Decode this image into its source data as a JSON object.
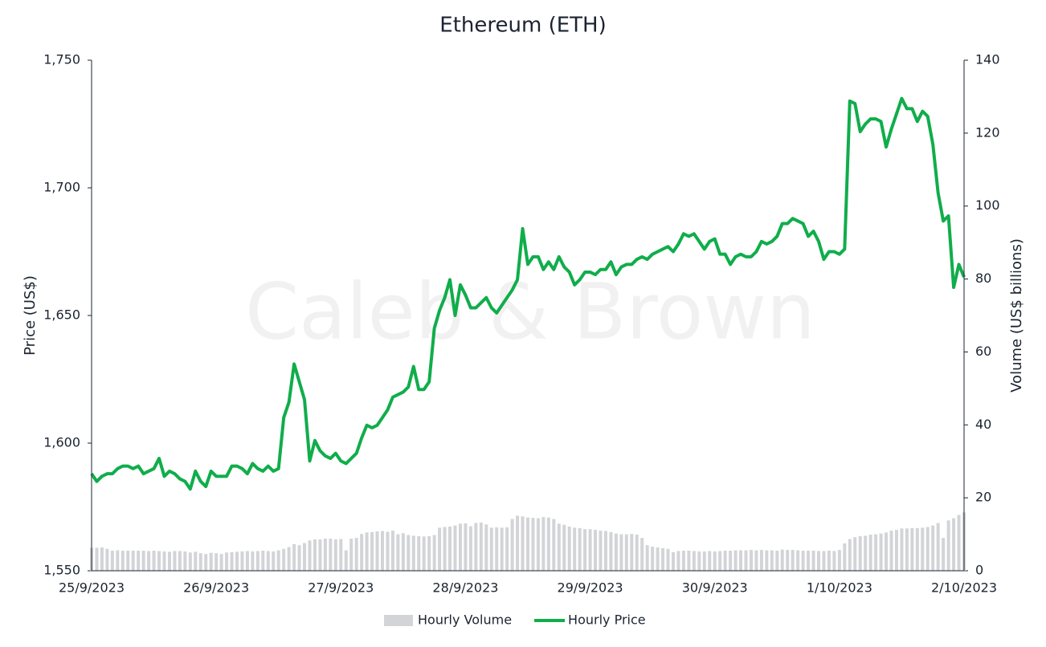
{
  "chart_data": {
    "type": "bar-line",
    "title": "Ethereum (ETH)",
    "watermark": "Caleb & Brown",
    "y_label": "Price (US$)",
    "y2_label": "Volume (US$ billions)",
    "categories": [
      "25/9/2023",
      null,
      null,
      null,
      null,
      null,
      null,
      null,
      null,
      null,
      null,
      null,
      null,
      null,
      null,
      null,
      null,
      null,
      null,
      null,
      null,
      null,
      null,
      null,
      "26/9/2023",
      null,
      null,
      null,
      null,
      null,
      null,
      null,
      null,
      null,
      null,
      null,
      null,
      null,
      null,
      null,
      null,
      null,
      null,
      null,
      null,
      null,
      null,
      null,
      "27/9/2023",
      null,
      null,
      null,
      null,
      null,
      null,
      null,
      null,
      null,
      null,
      null,
      null,
      null,
      null,
      null,
      null,
      null,
      null,
      null,
      null,
      null,
      null,
      null,
      "28/9/2023",
      null,
      null,
      null,
      null,
      null,
      null,
      null,
      null,
      null,
      null,
      null,
      null,
      null,
      null,
      null,
      null,
      null,
      null,
      null,
      null,
      null,
      null,
      null,
      "29/9/2023",
      null,
      null,
      null,
      null,
      null,
      null,
      null,
      null,
      null,
      null,
      null,
      null,
      null,
      null,
      null,
      null,
      null,
      null,
      null,
      null,
      null,
      null,
      null,
      "30/9/2023",
      null,
      null,
      null,
      null,
      null,
      null,
      null,
      null,
      null,
      null,
      null,
      null,
      null,
      null,
      null,
      null,
      null,
      null,
      null,
      null,
      null,
      null,
      null,
      "1/10/2023",
      null,
      null,
      null,
      null,
      null,
      null,
      null,
      null,
      null,
      null,
      null,
      null,
      null,
      null,
      null,
      null,
      null,
      null,
      null,
      null,
      null,
      null,
      null,
      "2/10/2023"
    ],
    "series": [
      {
        "name": "Hourly Volume",
        "type": "bar",
        "axis": "y2",
        "color": "#d3d4d8",
        "values": [
          6.3,
          6.3,
          6.4,
          6.0,
          5.5,
          5.6,
          5.5,
          5.5,
          5.5,
          5.5,
          5.5,
          5.4,
          5.5,
          5.4,
          5.3,
          5.2,
          5.4,
          5.4,
          5.3,
          5.0,
          5.2,
          4.8,
          4.6,
          4.9,
          4.8,
          4.6,
          5.0,
          5.1,
          5.2,
          5.3,
          5.4,
          5.3,
          5.4,
          5.5,
          5.4,
          5.3,
          5.6,
          6.0,
          6.5,
          7.3,
          7.0,
          7.6,
          8.3,
          8.6,
          8.6,
          8.8,
          8.8,
          8.6,
          8.7,
          5.6,
          8.8,
          9.0,
          10.1,
          10.5,
          10.6,
          10.8,
          10.9,
          10.7,
          11.0,
          10.0,
          10.3,
          9.8,
          9.6,
          9.5,
          9.4,
          9.5,
          9.8,
          11.8,
          12.0,
          12.1,
          12.4,
          12.9,
          13.0,
          12.2,
          13.1,
          13.2,
          12.7,
          11.8,
          11.9,
          11.8,
          11.9,
          14.2,
          15.1,
          14.9,
          14.6,
          14.5,
          14.4,
          14.7,
          14.6,
          14.2,
          12.9,
          12.6,
          12.1,
          11.8,
          11.7,
          11.4,
          11.4,
          11.2,
          11.0,
          10.9,
          10.6,
          10.2,
          10.0,
          10.0,
          10.1,
          9.9,
          9.0,
          7.0,
          6.6,
          6.4,
          6.2,
          6.0,
          5.1,
          5.4,
          5.5,
          5.5,
          5.4,
          5.3,
          5.3,
          5.4,
          5.3,
          5.4,
          5.5,
          5.5,
          5.6,
          5.6,
          5.6,
          5.7,
          5.6,
          5.7,
          5.6,
          5.6,
          5.5,
          5.8,
          5.7,
          5.7,
          5.6,
          5.5,
          5.5,
          5.5,
          5.4,
          5.4,
          5.5,
          5.4,
          5.7,
          7.5,
          8.7,
          9.2,
          9.5,
          9.6,
          9.9,
          10.0,
          10.2,
          10.5,
          11.0,
          11.2,
          11.6,
          11.6,
          11.7,
          11.7,
          11.8,
          12.0,
          12.4,
          13.1,
          9.0,
          13.8,
          14.4,
          15.3,
          16.0
        ]
      },
      {
        "name": "Hourly Price",
        "type": "line",
        "axis": "y",
        "color": "#10ad4b",
        "values": [
          1588,
          1585,
          1587,
          1588,
          1588,
          1590,
          1591,
          1591,
          1590,
          1591,
          1588,
          1589,
          1590,
          1594,
          1587,
          1589,
          1588,
          1586,
          1585,
          1582,
          1589,
          1585,
          1583,
          1589,
          1587,
          1587,
          1587,
          1591,
          1591,
          1590,
          1588,
          1592,
          1590,
          1589,
          1591,
          1589,
          1590,
          1610,
          1616,
          1631,
          1624,
          1617,
          1593,
          1601,
          1597,
          1595,
          1594,
          1596,
          1593,
          1592,
          1594,
          1596,
          1602,
          1607,
          1606,
          1607,
          1610,
          1613,
          1618,
          1619,
          1620,
          1622,
          1630,
          1621,
          1621,
          1624,
          1645,
          1652,
          1657,
          1664,
          1650,
          1662,
          1658,
          1653,
          1653,
          1655,
          1657,
          1653,
          1651,
          1654,
          1657,
          1660,
          1664,
          1684,
          1670,
          1673,
          1673,
          1668,
          1671,
          1668,
          1673,
          1669,
          1667,
          1662,
          1664,
          1667,
          1667,
          1666,
          1668,
          1668,
          1671,
          1666,
          1669,
          1670,
          1670,
          1672,
          1673,
          1672,
          1674,
          1675,
          1676,
          1677,
          1675,
          1678,
          1682,
          1681,
          1682,
          1679,
          1676,
          1679,
          1680,
          1674,
          1674,
          1670,
          1673,
          1674,
          1673,
          1673,
          1675,
          1679,
          1678,
          1679,
          1681,
          1686,
          1686,
          1688,
          1687,
          1686,
          1681,
          1683,
          1679,
          1672,
          1675,
          1675,
          1674,
          1676,
          1734,
          1733,
          1722,
          1725,
          1727,
          1727,
          1726,
          1716,
          1723,
          1729,
          1735,
          1731,
          1731,
          1726,
          1730,
          1728,
          1717,
          1698,
          1687,
          1689,
          1661,
          1670,
          1665
        ]
      }
    ],
    "ylim": [
      1550,
      1750
    ],
    "yticks": [
      {
        "value": 1550,
        "label": "1,550"
      },
      {
        "value": 1600,
        "label": "1,600"
      },
      {
        "value": 1650,
        "label": "1,650"
      },
      {
        "value": 1700,
        "label": "1,700"
      },
      {
        "value": 1750,
        "label": "1,750"
      }
    ],
    "y2lim": [
      0,
      140
    ],
    "y2ticks": [
      0,
      20,
      40,
      60,
      80,
      100,
      120,
      140
    ],
    "grid": false,
    "legend": "bottom"
  }
}
